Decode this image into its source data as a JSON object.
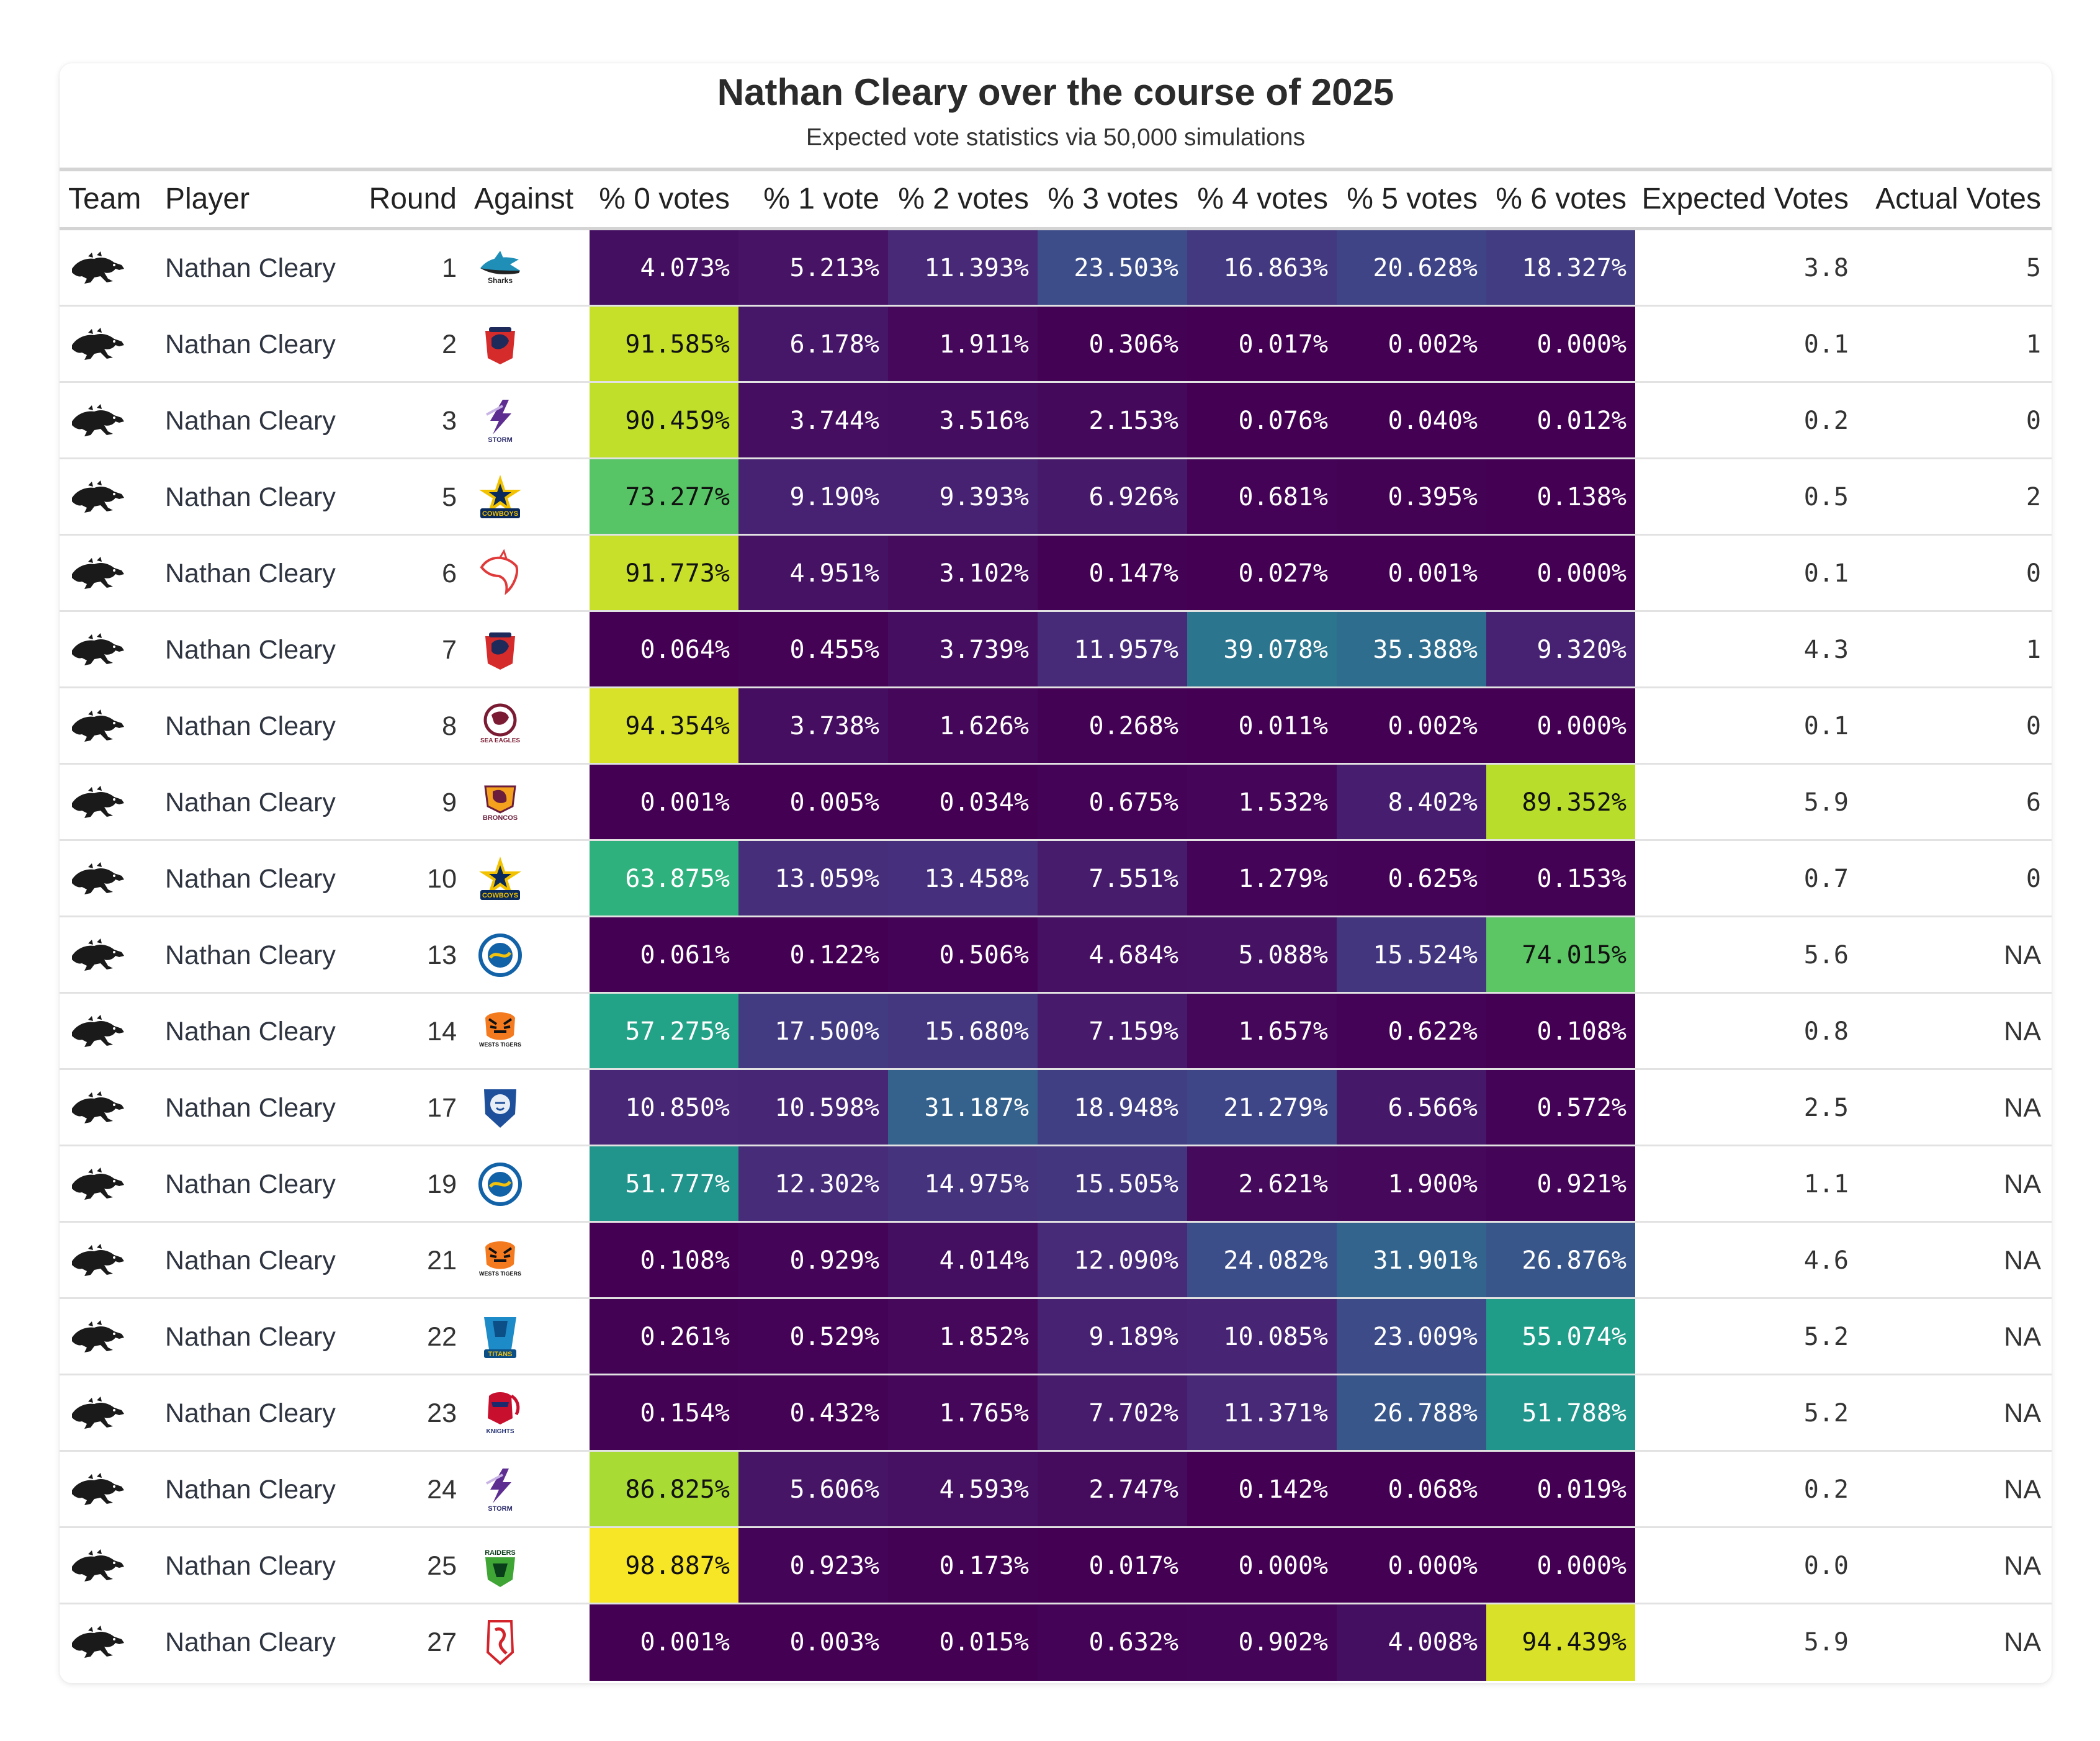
{
  "title": "Nathan Cleary over the course of 2025",
  "subtitle": "Expected vote statistics via 50,000 simulations",
  "columns": [
    "Team",
    "Player",
    "Round",
    "Against",
    "% 0 votes",
    "% 1 vote",
    "% 2 votes",
    "% 3 votes",
    "% 4 votes",
    "% 5 votes",
    "% 6 votes",
    "Expected Votes",
    "Actual Votes"
  ],
  "colors": {
    "palette": "viridis",
    "viridis_stops": [
      "#440154",
      "#482878",
      "#3e4989",
      "#31688e",
      "#26828e",
      "#1f9e89",
      "#35b779",
      "#6ece58",
      "#b5de2b",
      "#fde725"
    ],
    "team_icon": "#1a1a1a"
  },
  "chart_data": {
    "type": "table",
    "title": "Nathan Cleary over the course of 2025",
    "subtitle": "Expected vote statistics via 50,000 simulations",
    "team": "panther-icon",
    "rows": [
      {
        "player": "Nathan Cleary",
        "round": "1",
        "against": "sharks",
        "against_label": "Sharks",
        "p": [
          "4.073%",
          "5.213%",
          "11.393%",
          "23.503%",
          "16.863%",
          "20.628%",
          "18.327%"
        ],
        "expected": "3.8",
        "actual": "5"
      },
      {
        "player": "Nathan Cleary",
        "round": "2",
        "against": "roosters",
        "against_label": "Roosters",
        "p": [
          "91.585%",
          "6.178%",
          "1.911%",
          "0.306%",
          "0.017%",
          "0.002%",
          "0.000%"
        ],
        "expected": "0.1",
        "actual": "1"
      },
      {
        "player": "Nathan Cleary",
        "round": "3",
        "against": "storm",
        "against_label": "STORM",
        "p": [
          "90.459%",
          "3.744%",
          "3.516%",
          "2.153%",
          "0.076%",
          "0.040%",
          "0.012%"
        ],
        "expected": "0.2",
        "actual": "0"
      },
      {
        "player": "Nathan Cleary",
        "round": "5",
        "against": "cowboys",
        "against_label": "COWBOYS",
        "p": [
          "73.277%",
          "9.190%",
          "9.393%",
          "6.926%",
          "0.681%",
          "0.395%",
          "0.138%"
        ],
        "expected": "0.5",
        "actual": "2"
      },
      {
        "player": "Nathan Cleary",
        "round": "6",
        "against": "dolphins",
        "against_label": "",
        "p": [
          "91.773%",
          "4.951%",
          "3.102%",
          "0.147%",
          "0.027%",
          "0.001%",
          "0.000%"
        ],
        "expected": "0.1",
        "actual": "0"
      },
      {
        "player": "Nathan Cleary",
        "round": "7",
        "against": "roosters",
        "against_label": "Roosters",
        "p": [
          "0.064%",
          "0.455%",
          "3.739%",
          "11.957%",
          "39.078%",
          "35.388%",
          "9.320%"
        ],
        "expected": "4.3",
        "actual": "1"
      },
      {
        "player": "Nathan Cleary",
        "round": "8",
        "against": "sea-eagles",
        "against_label": "SEA EAGLES",
        "p": [
          "94.354%",
          "3.738%",
          "1.626%",
          "0.268%",
          "0.011%",
          "0.002%",
          "0.000%"
        ],
        "expected": "0.1",
        "actual": "0"
      },
      {
        "player": "Nathan Cleary",
        "round": "9",
        "against": "broncos",
        "against_label": "BRONCOS",
        "p": [
          "0.001%",
          "0.005%",
          "0.034%",
          "0.675%",
          "1.532%",
          "8.402%",
          "89.352%"
        ],
        "expected": "5.9",
        "actual": "6"
      },
      {
        "player": "Nathan Cleary",
        "round": "10",
        "against": "cowboys",
        "against_label": "COWBOYS",
        "p": [
          "63.875%",
          "13.059%",
          "13.458%",
          "7.551%",
          "1.279%",
          "0.625%",
          "0.153%"
        ],
        "expected": "0.7",
        "actual": "0"
      },
      {
        "player": "Nathan Cleary",
        "round": "13",
        "against": "eels",
        "against_label": "",
        "p": [
          "0.061%",
          "0.122%",
          "0.506%",
          "4.684%",
          "5.088%",
          "15.524%",
          "74.015%"
        ],
        "expected": "5.6",
        "actual": "NA"
      },
      {
        "player": "Nathan Cleary",
        "round": "14",
        "against": "wests-tigers",
        "against_label": "WESTS TIGERS",
        "p": [
          "57.275%",
          "17.500%",
          "15.680%",
          "7.159%",
          "1.657%",
          "0.622%",
          "0.108%"
        ],
        "expected": "0.8",
        "actual": "NA"
      },
      {
        "player": "Nathan Cleary",
        "round": "17",
        "against": "bulldogs",
        "against_label": "",
        "p": [
          "10.850%",
          "10.598%",
          "31.187%",
          "18.948%",
          "21.279%",
          "6.566%",
          "0.572%"
        ],
        "expected": "2.5",
        "actual": "NA"
      },
      {
        "player": "Nathan Cleary",
        "round": "19",
        "against": "eels",
        "against_label": "",
        "p": [
          "51.777%",
          "12.302%",
          "14.975%",
          "15.505%",
          "2.621%",
          "1.900%",
          "0.921%"
        ],
        "expected": "1.1",
        "actual": "NA"
      },
      {
        "player": "Nathan Cleary",
        "round": "21",
        "against": "wests-tigers",
        "against_label": "WESTS TIGERS",
        "p": [
          "0.108%",
          "0.929%",
          "4.014%",
          "12.090%",
          "24.082%",
          "31.901%",
          "26.876%"
        ],
        "expected": "4.6",
        "actual": "NA"
      },
      {
        "player": "Nathan Cleary",
        "round": "22",
        "against": "titans",
        "against_label": "TITANS",
        "p": [
          "0.261%",
          "0.529%",
          "1.852%",
          "9.189%",
          "10.085%",
          "23.009%",
          "55.074%"
        ],
        "expected": "5.2",
        "actual": "NA"
      },
      {
        "player": "Nathan Cleary",
        "round": "23",
        "against": "knights",
        "against_label": "KNIGHTS",
        "p": [
          "0.154%",
          "0.432%",
          "1.765%",
          "7.702%",
          "11.371%",
          "26.788%",
          "51.788%"
        ],
        "expected": "5.2",
        "actual": "NA"
      },
      {
        "player": "Nathan Cleary",
        "round": "24",
        "against": "storm",
        "against_label": "STORM",
        "p": [
          "86.825%",
          "5.606%",
          "4.593%",
          "2.747%",
          "0.142%",
          "0.068%",
          "0.019%"
        ],
        "expected": "0.2",
        "actual": "NA"
      },
      {
        "player": "Nathan Cleary",
        "round": "25",
        "against": "raiders",
        "against_label": "RAIDERS",
        "p": [
          "98.887%",
          "0.923%",
          "0.173%",
          "0.017%",
          "0.000%",
          "0.000%",
          "0.000%"
        ],
        "expected": "0.0",
        "actual": "NA"
      },
      {
        "player": "Nathan Cleary",
        "round": "27",
        "against": "dragons",
        "against_label": "",
        "p": [
          "0.001%",
          "0.003%",
          "0.015%",
          "0.632%",
          "0.902%",
          "4.008%",
          "94.439%"
        ],
        "expected": "5.9",
        "actual": "NA"
      }
    ]
  }
}
